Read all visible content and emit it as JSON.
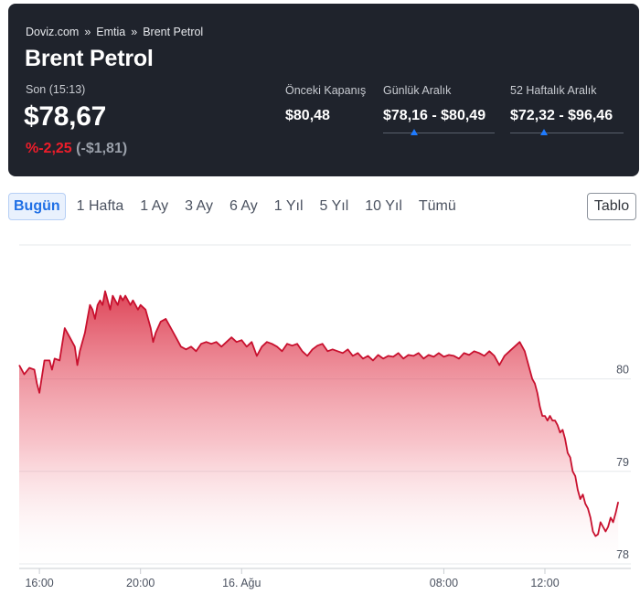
{
  "breadcrumb": [
    "Doviz.com",
    "Emtia",
    "Brent Petrol"
  ],
  "breadcrumb_separator": "»",
  "title": "Brent Petrol",
  "last": {
    "label": "Son (15:13)",
    "price": "$78,67",
    "change_pct": "%-2,25",
    "change_abs": "(-$1,81)"
  },
  "stats": {
    "prev_close": {
      "label": "Önceki Kapanış",
      "value": "$80,48"
    },
    "daily_range": {
      "label": "Günlük Aralık",
      "value": "$78,16 - $80,49",
      "marker_fraction": 0.28
    },
    "week52_range": {
      "label": "52 Haftalık Aralık",
      "value": "$72,32 - $96,46",
      "marker_fraction": 0.3
    }
  },
  "tabs": [
    "Bugün",
    "1 Hafta",
    "1 Ay",
    "3 Ay",
    "6 Ay",
    "1 Yıl",
    "5 Yıl",
    "10 Yıl",
    "Tümü"
  ],
  "active_tab": "Bugün",
  "table_button": "Tablo",
  "colors": {
    "header_bg": "#1f232c",
    "negative": "#ee1d2a",
    "accent": "#1f7bff",
    "line": "#c8102e"
  },
  "chart_data": {
    "type": "area",
    "ylim": [
      77.95,
      81.45
    ],
    "y_ticks": [
      78,
      79,
      80
    ],
    "x_ticks": [
      {
        "label": "16:00",
        "hour": 16
      },
      {
        "label": "20:00",
        "hour": 20
      },
      {
        "label": "16. Ağu",
        "hour": 24
      },
      {
        "label": "08:00",
        "hour": 32
      },
      {
        "label": "12:00",
        "hour": 36
      }
    ],
    "x_range_hours": [
      15.2,
      39.4
    ],
    "series": [
      {
        "points": [
          [
            15.2,
            80.15
          ],
          [
            15.4,
            80.05
          ],
          [
            15.6,
            80.12
          ],
          [
            15.8,
            80.1
          ],
          [
            15.9,
            79.95
          ],
          [
            16.0,
            79.85
          ],
          [
            16.2,
            80.2
          ],
          [
            16.4,
            80.2
          ],
          [
            16.5,
            80.1
          ],
          [
            16.6,
            80.22
          ],
          [
            16.8,
            80.2
          ],
          [
            17.0,
            80.55
          ],
          [
            17.2,
            80.45
          ],
          [
            17.4,
            80.35
          ],
          [
            17.5,
            80.15
          ],
          [
            17.6,
            80.3
          ],
          [
            17.8,
            80.5
          ],
          [
            17.9,
            80.65
          ],
          [
            18.0,
            80.8
          ],
          [
            18.1,
            80.75
          ],
          [
            18.2,
            80.65
          ],
          [
            18.3,
            80.8
          ],
          [
            18.4,
            80.85
          ],
          [
            18.5,
            80.8
          ],
          [
            18.6,
            80.95
          ],
          [
            18.7,
            80.85
          ],
          [
            18.8,
            80.75
          ],
          [
            18.9,
            80.9
          ],
          [
            19.0,
            80.85
          ],
          [
            19.1,
            80.8
          ],
          [
            19.2,
            80.9
          ],
          [
            19.3,
            80.85
          ],
          [
            19.4,
            80.9
          ],
          [
            19.5,
            80.85
          ],
          [
            19.6,
            80.8
          ],
          [
            19.7,
            80.85
          ],
          [
            19.8,
            80.8
          ],
          [
            19.9,
            80.75
          ],
          [
            20.0,
            80.8
          ],
          [
            20.2,
            80.75
          ],
          [
            20.4,
            80.55
          ],
          [
            20.5,
            80.4
          ],
          [
            20.6,
            80.5
          ],
          [
            20.8,
            80.62
          ],
          [
            21.0,
            80.65
          ],
          [
            21.2,
            80.55
          ],
          [
            21.4,
            80.45
          ],
          [
            21.6,
            80.35
          ],
          [
            21.8,
            80.32
          ],
          [
            22.0,
            80.35
          ],
          [
            22.2,
            80.3
          ],
          [
            22.4,
            80.38
          ],
          [
            22.6,
            80.4
          ],
          [
            22.8,
            80.38
          ],
          [
            23.0,
            80.4
          ],
          [
            23.2,
            80.35
          ],
          [
            23.4,
            80.4
          ],
          [
            23.6,
            80.45
          ],
          [
            23.8,
            80.4
          ],
          [
            24.0,
            80.42
          ],
          [
            24.2,
            80.35
          ],
          [
            24.4,
            80.4
          ],
          [
            24.6,
            80.25
          ],
          [
            24.8,
            80.35
          ],
          [
            25.0,
            80.4
          ],
          [
            25.2,
            80.38
          ],
          [
            25.4,
            80.35
          ],
          [
            25.6,
            80.3
          ],
          [
            25.8,
            80.38
          ],
          [
            26.0,
            80.36
          ],
          [
            26.2,
            80.38
          ],
          [
            26.4,
            80.3
          ],
          [
            26.6,
            80.25
          ],
          [
            26.8,
            80.32
          ],
          [
            27.0,
            80.36
          ],
          [
            27.2,
            80.38
          ],
          [
            27.4,
            80.3
          ],
          [
            27.6,
            80.32
          ],
          [
            27.8,
            80.3
          ],
          [
            28.0,
            80.28
          ],
          [
            28.2,
            80.32
          ],
          [
            28.4,
            80.25
          ],
          [
            28.6,
            80.28
          ],
          [
            28.8,
            80.22
          ],
          [
            29.0,
            80.25
          ],
          [
            29.2,
            80.2
          ],
          [
            29.4,
            80.26
          ],
          [
            29.6,
            80.22
          ],
          [
            29.8,
            80.25
          ],
          [
            30.0,
            80.24
          ],
          [
            30.2,
            80.28
          ],
          [
            30.4,
            80.22
          ],
          [
            30.6,
            80.26
          ],
          [
            30.8,
            80.25
          ],
          [
            31.0,
            80.28
          ],
          [
            31.2,
            80.22
          ],
          [
            31.4,
            80.26
          ],
          [
            31.6,
            80.24
          ],
          [
            31.8,
            80.28
          ],
          [
            32.0,
            80.24
          ],
          [
            32.2,
            80.26
          ],
          [
            32.4,
            80.25
          ],
          [
            32.6,
            80.22
          ],
          [
            32.8,
            80.28
          ],
          [
            33.0,
            80.26
          ],
          [
            33.2,
            80.3
          ],
          [
            33.4,
            80.28
          ],
          [
            33.6,
            80.25
          ],
          [
            33.8,
            80.3
          ],
          [
            34.0,
            80.25
          ],
          [
            34.2,
            80.15
          ],
          [
            34.4,
            80.25
          ],
          [
            34.6,
            80.3
          ],
          [
            34.8,
            80.35
          ],
          [
            35.0,
            80.4
          ],
          [
            35.2,
            80.3
          ],
          [
            35.4,
            80.1
          ],
          [
            35.5,
            80.0
          ],
          [
            35.6,
            79.95
          ],
          [
            35.7,
            79.85
          ],
          [
            35.8,
            79.7
          ],
          [
            35.9,
            79.6
          ],
          [
            36.0,
            79.6
          ],
          [
            36.1,
            79.55
          ],
          [
            36.2,
            79.6
          ],
          [
            36.3,
            79.55
          ],
          [
            36.4,
            79.55
          ],
          [
            36.5,
            79.5
          ],
          [
            36.6,
            79.42
          ],
          [
            36.7,
            79.45
          ],
          [
            36.8,
            79.35
          ],
          [
            36.9,
            79.2
          ],
          [
            37.0,
            79.15
          ],
          [
            37.1,
            79.0
          ],
          [
            37.2,
            78.95
          ],
          [
            37.3,
            78.8
          ],
          [
            37.4,
            78.7
          ],
          [
            37.5,
            78.75
          ],
          [
            37.6,
            78.65
          ],
          [
            37.7,
            78.6
          ],
          [
            37.8,
            78.5
          ],
          [
            37.9,
            78.35
          ],
          [
            38.0,
            78.3
          ],
          [
            38.1,
            78.32
          ],
          [
            38.2,
            78.45
          ],
          [
            38.3,
            78.4
          ],
          [
            38.4,
            78.35
          ],
          [
            38.5,
            78.4
          ],
          [
            38.6,
            78.5
          ],
          [
            38.7,
            78.45
          ],
          [
            38.8,
            78.55
          ],
          [
            38.9,
            78.67
          ]
        ]
      }
    ]
  }
}
